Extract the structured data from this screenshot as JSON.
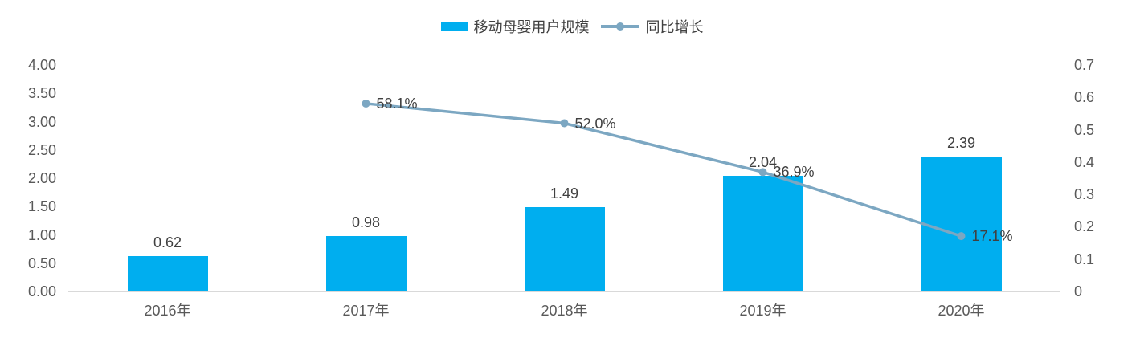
{
  "legend": {
    "bar_label": "移动母婴用户规模",
    "line_label": "同比增长"
  },
  "colors": {
    "bar": "#00AEEF",
    "line": "#7CA7C2",
    "axis_text": "#595959",
    "data_label_text": "#404040",
    "baseline": "#D9D9D9"
  },
  "chart_data": {
    "type": "bar+line combo",
    "title": "",
    "categories": [
      "2016年",
      "2017年",
      "2018年",
      "2019年",
      "2020年"
    ],
    "series": [
      {
        "name": "移动母婴用户规模",
        "type": "bar",
        "axis": "left",
        "color": "#00AEEF",
        "values": [
          0.62,
          0.98,
          1.49,
          2.04,
          2.39
        ],
        "labels": [
          "0.62",
          "0.98",
          "1.49",
          "2.04",
          "2.39"
        ]
      },
      {
        "name": "同比增长",
        "type": "line",
        "axis": "right",
        "color": "#7CA7C2",
        "values": [
          null,
          0.581,
          0.52,
          0.369,
          0.171
        ],
        "labels": [
          null,
          "58.1%",
          "52.0%",
          "36.9%",
          "17.1%"
        ]
      }
    ],
    "left_axis": {
      "min": 0,
      "max": 4,
      "step": 0.5,
      "ticks": [
        "4.00",
        "3.50",
        "3.00",
        "2.50",
        "2.00",
        "1.50",
        "1.00",
        "0.50",
        "0.00"
      ]
    },
    "right_axis": {
      "min": 0,
      "max": 0.7,
      "step": 0.1,
      "ticks": [
        "0.7",
        "0.6",
        "0.5",
        "0.4",
        "0.3",
        "0.2",
        "0.1",
        "0"
      ]
    },
    "grid": false,
    "legend_position": "top-center"
  }
}
